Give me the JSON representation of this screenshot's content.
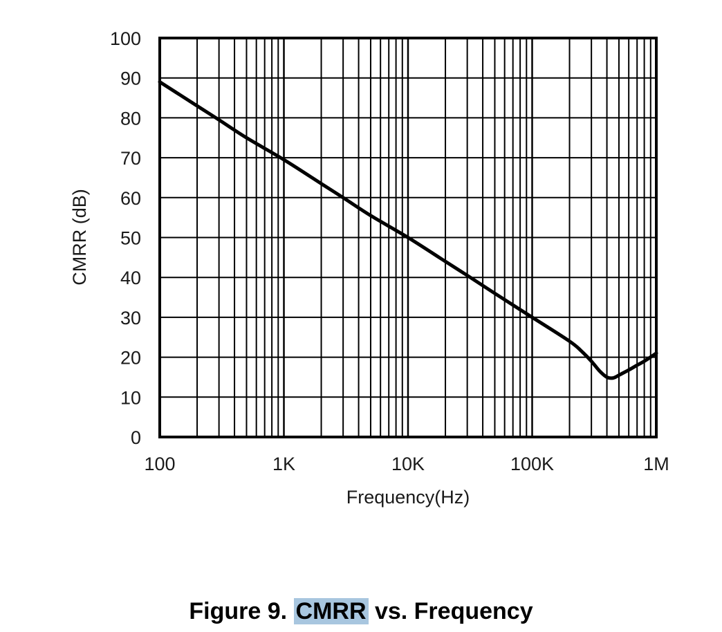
{
  "chart_data": {
    "type": "line",
    "title": "Figure 9. CMRR vs. Frequency",
    "xlabel": "Frequency(Hz)",
    "ylabel": "CMRR (dB)",
    "xscale": "log",
    "xlim": [
      100,
      1000000
    ],
    "ylim": [
      0,
      100
    ],
    "grid": true,
    "x_tick_labels": [
      {
        "value": 100,
        "label": "100"
      },
      {
        "value": 1000,
        "label": "1K"
      },
      {
        "value": 10000,
        "label": "10K"
      },
      {
        "value": 100000,
        "label": "100K"
      },
      {
        "value": 1000000,
        "label": "1M"
      }
    ],
    "y_tick_labels": [
      {
        "value": 0,
        "label": "0"
      },
      {
        "value": 10,
        "label": "10"
      },
      {
        "value": 20,
        "label": "20"
      },
      {
        "value": 30,
        "label": "30"
      },
      {
        "value": 40,
        "label": "40"
      },
      {
        "value": 50,
        "label": "50"
      },
      {
        "value": 60,
        "label": "60"
      },
      {
        "value": 70,
        "label": "70"
      },
      {
        "value": 80,
        "label": "80"
      },
      {
        "value": 90,
        "label": "90"
      },
      {
        "value": 100,
        "label": "100"
      }
    ],
    "series": [
      {
        "name": "CMRR",
        "x": [
          100,
          200,
          300,
          500,
          1000,
          2000,
          3000,
          5000,
          10000,
          20000,
          30000,
          50000,
          100000,
          200000,
          250000,
          300000,
          350000,
          400000,
          450000,
          500000,
          600000,
          700000,
          800000,
          1000000
        ],
        "y": [
          89,
          83,
          79.5,
          75,
          69.5,
          63.5,
          60,
          55.5,
          50,
          44,
          40.5,
          36,
          30,
          24,
          21.5,
          19,
          16.5,
          15,
          14.8,
          15.5,
          16.8,
          18,
          19,
          21
        ]
      }
    ]
  },
  "caption": {
    "prefix": "Figure 9. ",
    "highlight": "CMRR",
    "suffix": " vs. Frequency"
  },
  "colors": {
    "line": "#000000",
    "grid": "#000000",
    "highlight": "#a8c6df"
  }
}
